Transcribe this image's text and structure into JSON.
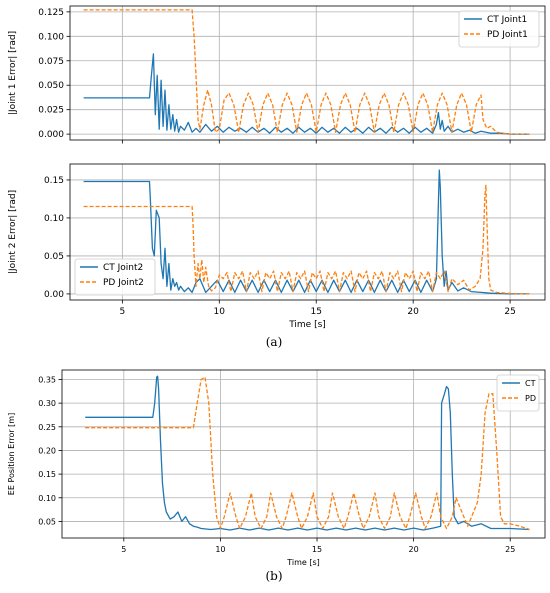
{
  "captions": [
    "(a)",
    "(b)"
  ],
  "colors": {
    "ct": "#1f77b4",
    "pd": "#ff7f0e"
  },
  "chart_data": [
    {
      "type": "line",
      "xlabel": "",
      "ylabel": "|Joint 1 Error| [rad]",
      "xlim": [
        2.3,
        26.8
      ],
      "ylim": [
        -0.006,
        0.131
      ],
      "xticks": [
        5,
        10,
        15,
        20,
        25
      ],
      "xtick_labels_visible": false,
      "yticks": [
        0.0,
        0.025,
        0.05,
        0.075,
        0.1,
        0.125
      ],
      "ytick_labels": [
        "0.000",
        "0.025",
        "0.050",
        "0.075",
        "0.100",
        "0.125"
      ],
      "grid": true,
      "legend": "top-right",
      "series": [
        {
          "name": "CT Joint1",
          "style": "solid",
          "x": [
            3.0,
            6.4,
            6.5,
            6.6,
            6.7,
            6.8,
            6.9,
            7.0,
            7.1,
            7.2,
            7.3,
            7.4,
            7.5,
            7.6,
            7.7,
            7.8,
            7.9,
            8.0,
            8.2,
            8.4,
            8.6,
            8.8,
            9.0,
            9.3,
            9.6,
            9.9,
            10.2,
            10.5,
            10.8,
            11.1,
            11.4,
            11.7,
            12.0,
            12.3,
            12.6,
            12.9,
            13.2,
            13.5,
            13.8,
            14.1,
            14.4,
            14.7,
            15.0,
            15.3,
            15.6,
            15.9,
            16.2,
            16.5,
            16.8,
            17.1,
            17.4,
            17.7,
            18.0,
            18.3,
            18.6,
            18.9,
            19.2,
            19.5,
            19.8,
            20.1,
            20.4,
            20.7,
            21.0,
            21.2,
            21.3,
            21.4,
            21.5,
            21.6,
            21.8,
            22.0,
            22.3,
            22.6,
            22.9,
            23.2,
            23.5,
            24.0,
            24.5,
            25.0,
            26.0
          ],
          "y": [
            0.037,
            0.037,
            0.06,
            0.082,
            0.02,
            0.06,
            0.005,
            0.055,
            0.008,
            0.045,
            0.004,
            0.03,
            0.005,
            0.02,
            0.003,
            0.015,
            0.002,
            0.008,
            0.004,
            0.012,
            0.002,
            0.006,
            0.002,
            0.01,
            0.003,
            0.008,
            0.002,
            0.007,
            0.003,
            0.006,
            0.002,
            0.007,
            0.002,
            0.006,
            0.001,
            0.007,
            0.002,
            0.006,
            0.001,
            0.007,
            0.002,
            0.006,
            0.001,
            0.007,
            0.002,
            0.006,
            0.001,
            0.007,
            0.002,
            0.006,
            0.001,
            0.007,
            0.002,
            0.006,
            0.001,
            0.007,
            0.002,
            0.006,
            0.001,
            0.007,
            0.002,
            0.006,
            0.001,
            0.01,
            0.022,
            0.005,
            0.014,
            0.003,
            0.008,
            0.002,
            0.005,
            0.002,
            0.004,
            0.001,
            0.003,
            0.001,
            0.001,
            0.0,
            0.0
          ]
        },
        {
          "name": "PD Joint1",
          "style": "dashed",
          "x": [
            3.0,
            8.6,
            8.7,
            8.8,
            8.9,
            9.0,
            9.2,
            9.4,
            9.6,
            9.8,
            10.0,
            10.25,
            10.5,
            10.75,
            11.0,
            11.25,
            11.5,
            11.75,
            12.0,
            12.25,
            12.5,
            12.75,
            13.0,
            13.25,
            13.5,
            13.75,
            14.0,
            14.25,
            14.5,
            14.75,
            15.0,
            15.25,
            15.5,
            15.75,
            16.0,
            16.25,
            16.5,
            16.75,
            17.0,
            17.25,
            17.5,
            17.75,
            18.0,
            18.25,
            18.5,
            18.75,
            19.0,
            19.25,
            19.5,
            19.75,
            20.0,
            20.25,
            20.5,
            20.75,
            21.0,
            21.25,
            21.5,
            21.75,
            22.0,
            22.25,
            22.5,
            22.75,
            23.0,
            23.25,
            23.5,
            23.6,
            23.8,
            24.0,
            24.3,
            24.6,
            25.0,
            26.0
          ],
          "y": [
            0.127,
            0.127,
            0.1,
            0.06,
            0.015,
            0.005,
            0.03,
            0.045,
            0.03,
            0.002,
            0.005,
            0.035,
            0.042,
            0.03,
            0.002,
            0.03,
            0.042,
            0.03,
            0.002,
            0.03,
            0.042,
            0.03,
            0.002,
            0.03,
            0.042,
            0.03,
            0.002,
            0.03,
            0.042,
            0.03,
            0.002,
            0.03,
            0.042,
            0.03,
            0.002,
            0.03,
            0.042,
            0.03,
            0.002,
            0.03,
            0.042,
            0.03,
            0.002,
            0.03,
            0.042,
            0.03,
            0.002,
            0.03,
            0.042,
            0.03,
            0.002,
            0.03,
            0.042,
            0.03,
            0.002,
            0.03,
            0.042,
            0.03,
            0.002,
            0.03,
            0.042,
            0.03,
            0.002,
            0.03,
            0.04,
            0.015,
            0.006,
            0.008,
            0.002,
            0.001,
            0.0,
            0.0
          ]
        }
      ]
    },
    {
      "type": "line",
      "xlabel": "Time [s]",
      "ylabel": "|Joint 2 Error| [rad]",
      "xlim": [
        2.3,
        26.8
      ],
      "ylim": [
        -0.008,
        0.171
      ],
      "xticks": [
        5,
        10,
        15,
        20,
        25
      ],
      "xtick_labels": [
        "5",
        "10",
        "15",
        "20",
        "25"
      ],
      "yticks": [
        0.0,
        0.05,
        0.1,
        0.15
      ],
      "ytick_labels": [
        "0.00",
        "0.05",
        "0.10",
        "0.15"
      ],
      "grid": true,
      "legend": "bottom-left",
      "series": [
        {
          "name": "CT Joint2",
          "style": "solid",
          "x": [
            3.0,
            6.4,
            6.45,
            6.55,
            6.65,
            6.75,
            6.9,
            7.0,
            7.1,
            7.2,
            7.3,
            7.4,
            7.5,
            7.6,
            7.7,
            7.8,
            7.9,
            8.0,
            8.2,
            8.4,
            8.6,
            8.8,
            9.0,
            9.3,
            9.6,
            9.9,
            10.2,
            10.5,
            10.8,
            11.1,
            11.4,
            11.7,
            12.0,
            12.3,
            12.6,
            12.9,
            13.2,
            13.5,
            13.8,
            14.1,
            14.4,
            14.7,
            15.0,
            15.3,
            15.6,
            15.9,
            16.2,
            16.5,
            16.8,
            17.1,
            17.4,
            17.7,
            18.0,
            18.3,
            18.6,
            18.9,
            19.2,
            19.5,
            19.8,
            20.1,
            20.4,
            20.7,
            21.0,
            21.2,
            21.3,
            21.35,
            21.4,
            21.5,
            21.6,
            21.7,
            21.8,
            22.0,
            22.3,
            22.6,
            23.0,
            23.5,
            24.0,
            25.0,
            26.0
          ],
          "y": [
            0.148,
            0.148,
            0.12,
            0.06,
            0.05,
            0.11,
            0.1,
            0.04,
            0.02,
            0.06,
            0.01,
            0.04,
            0.005,
            0.02,
            0.01,
            0.015,
            0.005,
            0.01,
            0.003,
            0.008,
            0.002,
            0.015,
            0.02,
            0.002,
            0.01,
            0.018,
            0.003,
            0.018,
            0.002,
            0.018,
            0.003,
            0.018,
            0.002,
            0.018,
            0.003,
            0.018,
            0.002,
            0.018,
            0.003,
            0.018,
            0.002,
            0.018,
            0.003,
            0.018,
            0.002,
            0.018,
            0.003,
            0.018,
            0.002,
            0.018,
            0.003,
            0.018,
            0.002,
            0.018,
            0.003,
            0.018,
            0.002,
            0.018,
            0.003,
            0.018,
            0.002,
            0.018,
            0.003,
            0.02,
            0.12,
            0.163,
            0.14,
            0.05,
            0.01,
            0.03,
            0.005,
            0.015,
            0.004,
            0.008,
            0.003,
            0.002,
            0.001,
            0.0,
            0.0
          ]
        },
        {
          "name": "PD Joint2",
          "style": "dashed",
          "x": [
            3.0,
            8.6,
            8.65,
            8.7,
            8.8,
            8.9,
            9.0,
            9.1,
            9.2,
            9.3,
            9.45,
            9.6,
            9.8,
            10.0,
            10.2,
            10.4,
            10.6,
            10.8,
            11.0,
            11.2,
            11.4,
            11.6,
            11.8,
            12.0,
            12.2,
            12.4,
            12.6,
            12.8,
            13.0,
            13.2,
            13.4,
            13.6,
            13.8,
            14.0,
            14.2,
            14.4,
            14.6,
            14.8,
            15.0,
            15.2,
            15.4,
            15.6,
            15.8,
            16.0,
            16.2,
            16.4,
            16.6,
            16.8,
            17.0,
            17.2,
            17.4,
            17.6,
            17.8,
            18.0,
            18.2,
            18.4,
            18.6,
            18.8,
            19.0,
            19.2,
            19.4,
            19.6,
            19.8,
            20.0,
            20.2,
            20.4,
            20.6,
            20.8,
            21.0,
            21.2,
            21.4,
            21.6,
            21.8,
            22.0,
            22.3,
            22.6,
            22.9,
            23.2,
            23.45,
            23.6,
            23.7,
            23.75,
            23.8,
            23.9,
            24.0,
            24.3,
            24.8,
            25.5,
            26.0
          ],
          "y": [
            0.115,
            0.115,
            0.09,
            0.05,
            0.01,
            0.04,
            0.02,
            0.045,
            0.015,
            0.035,
            0.01,
            0.004,
            0.008,
            0.025,
            0.02,
            0.028,
            0.003,
            0.028,
            0.02,
            0.03,
            0.003,
            0.028,
            0.02,
            0.03,
            0.003,
            0.028,
            0.02,
            0.03,
            0.003,
            0.028,
            0.02,
            0.03,
            0.003,
            0.028,
            0.02,
            0.03,
            0.003,
            0.028,
            0.02,
            0.03,
            0.003,
            0.028,
            0.02,
            0.03,
            0.003,
            0.028,
            0.02,
            0.03,
            0.003,
            0.028,
            0.02,
            0.03,
            0.003,
            0.028,
            0.02,
            0.03,
            0.003,
            0.028,
            0.02,
            0.03,
            0.003,
            0.028,
            0.02,
            0.03,
            0.003,
            0.028,
            0.02,
            0.03,
            0.003,
            0.028,
            0.02,
            0.03,
            0.003,
            0.02,
            0.012,
            0.018,
            0.005,
            0.01,
            0.02,
            0.06,
            0.13,
            0.143,
            0.1,
            0.02,
            0.005,
            0.002,
            0.001,
            0.0,
            0.0
          ]
        }
      ]
    },
    {
      "type": "line",
      "xlabel": "Time [s]",
      "ylabel": "EE Position Error [m]",
      "xlim": [
        1.8,
        26.8
      ],
      "ylim": [
        0.015,
        0.37
      ],
      "xticks": [
        5,
        10,
        15,
        20,
        25
      ],
      "xtick_labels": [
        "5",
        "10",
        "15",
        "20",
        "25"
      ],
      "yticks": [
        0.05,
        0.1,
        0.15,
        0.2,
        0.25,
        0.3,
        0.35
      ],
      "ytick_labels": [
        "0.05",
        "0.10",
        "0.15",
        "0.20",
        "0.25",
        "0.30",
        "0.35"
      ],
      "grid": true,
      "legend": "top-right",
      "series": [
        {
          "name": "CT",
          "style": "solid",
          "x": [
            3.0,
            6.5,
            6.6,
            6.7,
            6.75,
            6.8,
            6.9,
            7.0,
            7.1,
            7.2,
            7.4,
            7.6,
            7.8,
            8.0,
            8.2,
            8.4,
            8.6,
            8.8,
            9.0,
            9.5,
            10.0,
            10.5,
            11.0,
            11.5,
            12.0,
            12.5,
            13.0,
            13.5,
            14.0,
            14.5,
            15.0,
            15.5,
            16.0,
            16.5,
            17.0,
            17.5,
            18.0,
            18.5,
            19.0,
            19.5,
            20.0,
            20.5,
            21.0,
            21.4,
            21.45,
            21.6,
            21.7,
            21.8,
            21.9,
            22.0,
            22.1,
            22.3,
            22.6,
            23.0,
            23.5,
            24.0,
            25.0,
            26.0
          ],
          "y": [
            0.27,
            0.27,
            0.3,
            0.355,
            0.357,
            0.33,
            0.22,
            0.13,
            0.09,
            0.07,
            0.055,
            0.06,
            0.07,
            0.05,
            0.06,
            0.045,
            0.04,
            0.038,
            0.035,
            0.033,
            0.035,
            0.032,
            0.036,
            0.032,
            0.036,
            0.032,
            0.036,
            0.032,
            0.036,
            0.032,
            0.036,
            0.032,
            0.036,
            0.032,
            0.036,
            0.032,
            0.036,
            0.032,
            0.036,
            0.032,
            0.036,
            0.032,
            0.036,
            0.04,
            0.3,
            0.32,
            0.335,
            0.33,
            0.28,
            0.15,
            0.06,
            0.045,
            0.05,
            0.04,
            0.045,
            0.035,
            0.035,
            0.033
          ]
        },
        {
          "name": "PD",
          "style": "dashed",
          "x": [
            3.0,
            8.6,
            8.8,
            9.0,
            9.2,
            9.4,
            9.6,
            9.8,
            10.0,
            10.2,
            10.5,
            10.8,
            11.0,
            11.3,
            11.6,
            11.8,
            12.1,
            12.4,
            12.6,
            12.9,
            13.2,
            13.4,
            13.7,
            14.0,
            14.2,
            14.5,
            14.8,
            15.0,
            15.3,
            15.6,
            15.8,
            16.1,
            16.4,
            16.6,
            16.9,
            17.2,
            17.4,
            17.7,
            18.0,
            18.2,
            18.5,
            18.8,
            19.0,
            19.3,
            19.6,
            19.8,
            20.1,
            20.4,
            20.6,
            20.9,
            21.2,
            21.4,
            21.7,
            22.0,
            22.2,
            22.5,
            22.8,
            23.0,
            23.3,
            23.5,
            23.7,
            23.9,
            24.1,
            24.3,
            24.5,
            24.7,
            25.0,
            25.5,
            26.0
          ],
          "y": [
            0.248,
            0.248,
            0.3,
            0.35,
            0.355,
            0.3,
            0.15,
            0.06,
            0.035,
            0.06,
            0.11,
            0.06,
            0.035,
            0.06,
            0.11,
            0.06,
            0.035,
            0.06,
            0.11,
            0.06,
            0.035,
            0.06,
            0.11,
            0.06,
            0.035,
            0.06,
            0.11,
            0.06,
            0.035,
            0.06,
            0.11,
            0.06,
            0.035,
            0.06,
            0.11,
            0.06,
            0.035,
            0.06,
            0.11,
            0.06,
            0.035,
            0.06,
            0.11,
            0.06,
            0.035,
            0.06,
            0.11,
            0.06,
            0.035,
            0.06,
            0.11,
            0.06,
            0.035,
            0.06,
            0.1,
            0.07,
            0.04,
            0.06,
            0.09,
            0.15,
            0.28,
            0.32,
            0.32,
            0.2,
            0.06,
            0.045,
            0.045,
            0.04,
            0.033
          ]
        }
      ]
    }
  ]
}
